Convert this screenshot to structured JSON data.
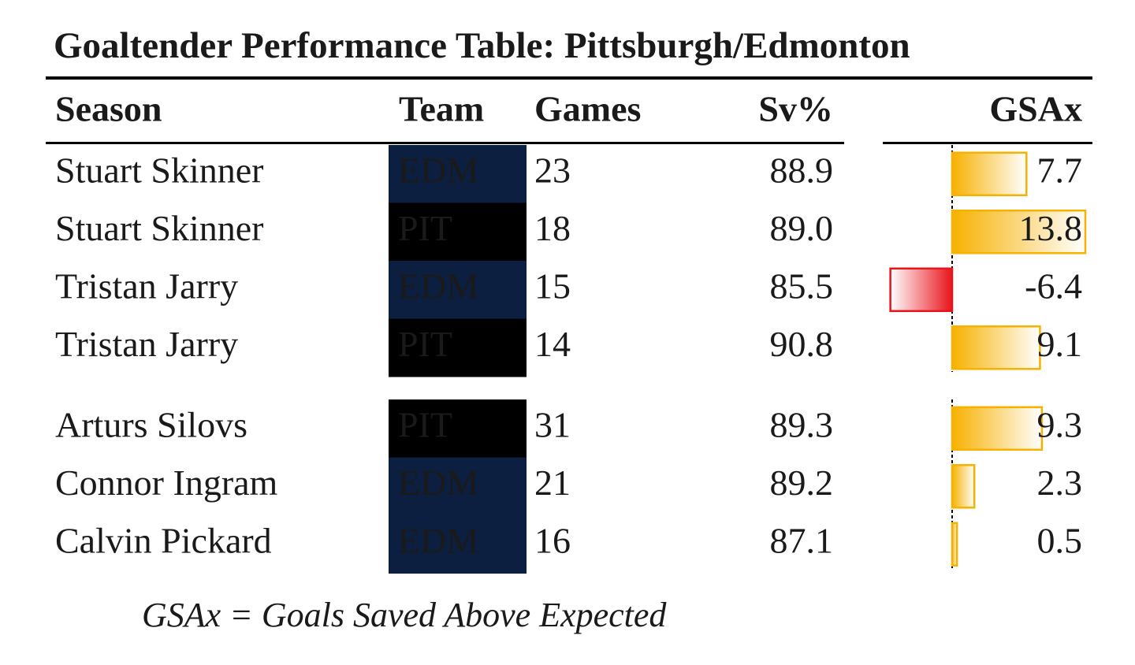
{
  "title": "Goaltender Performance Table: Pittsburgh/Edmonton",
  "headers": [
    "Season",
    "Team",
    "Games",
    "Sv%",
    "GSAx"
  ],
  "groups": [
    [
      [
        "Stuart Skinner",
        "EDM",
        23,
        "88.9",
        7.7
      ],
      [
        "Stuart Skinner",
        "PIT",
        18,
        "89.0",
        13.8
      ],
      [
        "Tristan Jarry",
        "EDM",
        15,
        "85.5",
        -6.4
      ],
      [
        "Tristan Jarry",
        "PIT",
        14,
        "90.8",
        9.1
      ]
    ],
    [
      [
        "Arturs Silovs",
        "PIT",
        31,
        "89.3",
        9.3
      ],
      [
        "Connor Ingram",
        "EDM",
        21,
        "89.2",
        2.3
      ],
      [
        "Calvin Pickard",
        "EDM",
        16,
        "87.1",
        0.5
      ]
    ]
  ],
  "team_styles": {
    "EDM": {
      "background": "#0c1f40",
      "color": "#ffffff"
    },
    "PIT": {
      "background": "#000000",
      "color": "#f2e600"
    }
  },
  "bar_colors": {
    "positive": "#f7b100",
    "negative": "#e8141c"
  },
  "footnote": "GSAx = Goals Saved Above Expected"
}
